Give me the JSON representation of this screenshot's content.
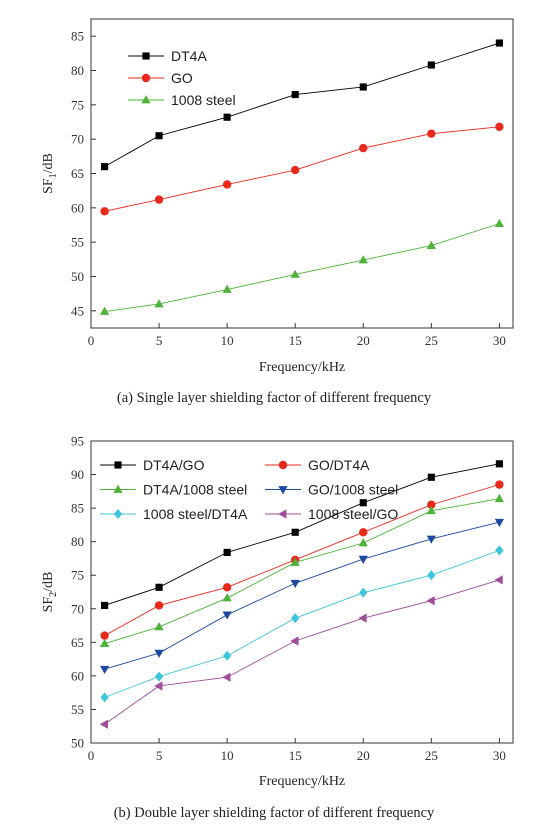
{
  "chart_data": [
    {
      "type": "line",
      "ylabel_main": "SF",
      "ylabel_sub": "1",
      "ylabel_unit": "/dB",
      "xlabel": "Frequency/kHz",
      "caption": "(a) Single layer shielding factor of different frequency",
      "x": [
        1,
        5,
        10,
        15,
        20,
        25,
        30
      ],
      "xticks": [
        0,
        5,
        10,
        15,
        20,
        25,
        30
      ],
      "yticks": [
        45,
        50,
        55,
        60,
        65,
        70,
        75,
        80,
        85
      ],
      "xlim": [
        0,
        31
      ],
      "ylim": [
        42.5,
        87.5
      ],
      "legend_columns": 1,
      "series": [
        {
          "name": "DT4A",
          "values": [
            66.0,
            70.5,
            73.2,
            76.5,
            77.6,
            80.8,
            84.0
          ],
          "color": "#000000",
          "marker": "square"
        },
        {
          "name": "GO",
          "values": [
            59.5,
            61.2,
            63.4,
            65.5,
            68.7,
            70.8,
            71.8
          ],
          "color": "#e8291c",
          "marker": "circle"
        },
        {
          "name": "1008 steel",
          "values": [
            44.9,
            46.0,
            48.1,
            50.3,
            52.4,
            54.5,
            57.7
          ],
          "color": "#4fb33b",
          "marker": "triangle-up"
        }
      ]
    },
    {
      "type": "line",
      "ylabel_main": "SF",
      "ylabel_sub": "2",
      "ylabel_unit": "/dB",
      "xlabel": "Frequency/kHz",
      "caption": "(b) Double layer shielding factor of different frequency",
      "x": [
        1,
        5,
        10,
        15,
        20,
        25,
        30
      ],
      "xticks": [
        0,
        5,
        10,
        15,
        20,
        25,
        30
      ],
      "yticks": [
        50,
        55,
        60,
        65,
        70,
        75,
        80,
        85,
        90,
        95
      ],
      "xlim": [
        0,
        31
      ],
      "ylim": [
        50,
        95
      ],
      "legend_columns": 2,
      "series": [
        {
          "name": "DT4A/GO",
          "values": [
            70.5,
            73.2,
            78.4,
            81.4,
            85.8,
            89.6,
            91.6
          ],
          "color": "#000000",
          "marker": "square"
        },
        {
          "name": "GO/DT4A",
          "values": [
            66.0,
            70.5,
            73.2,
            77.3,
            81.4,
            85.5,
            88.5
          ],
          "color": "#e8291c",
          "marker": "circle"
        },
        {
          "name": "DT4A/1008 steel",
          "values": [
            64.8,
            67.3,
            71.6,
            76.9,
            79.8,
            84.6,
            86.4
          ],
          "color": "#4fb33b",
          "marker": "triangle-up"
        },
        {
          "name": "GO/1008 steel",
          "values": [
            61.0,
            63.4,
            69.1,
            73.8,
            77.4,
            80.4,
            82.9
          ],
          "color": "#1d4aa0",
          "marker": "triangle-down"
        },
        {
          "name": "1008 steel/DT4A",
          "values": [
            56.8,
            59.9,
            63.0,
            68.6,
            72.4,
            75.0,
            78.7
          ],
          "color": "#3ec5dd",
          "marker": "diamond"
        },
        {
          "name": "1008 steel/GO",
          "values": [
            52.8,
            58.5,
            59.8,
            65.2,
            68.6,
            71.2,
            74.3
          ],
          "color": "#a04d9a",
          "marker": "triangle-left"
        }
      ]
    }
  ]
}
